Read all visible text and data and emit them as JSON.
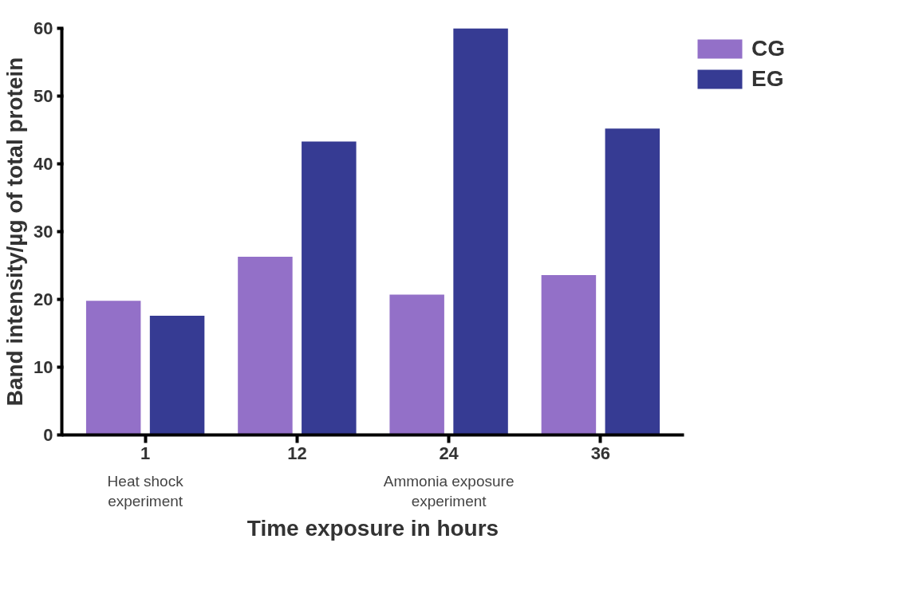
{
  "chart_data": {
    "type": "bar",
    "xlabel": "Time exposure in hours",
    "ylabel": "Band intensity/µg of total protein",
    "categories": [
      "1",
      "12",
      "24",
      "36"
    ],
    "series": [
      {
        "name": "CG",
        "color": "#9370c8",
        "values": [
          19.8,
          26.3,
          20.7,
          23.6
        ]
      },
      {
        "name": "EG",
        "color": "#363b93",
        "values": [
          17.6,
          43.3,
          60,
          45.2
        ]
      }
    ],
    "ylim": [
      0,
      60
    ],
    "yticks": [
      0,
      10,
      20,
      30,
      40,
      50,
      60
    ],
    "grid": false,
    "legend": "top right",
    "annotations": [
      "Heat shock experiment",
      "Ammonia exposure experiment"
    ]
  }
}
